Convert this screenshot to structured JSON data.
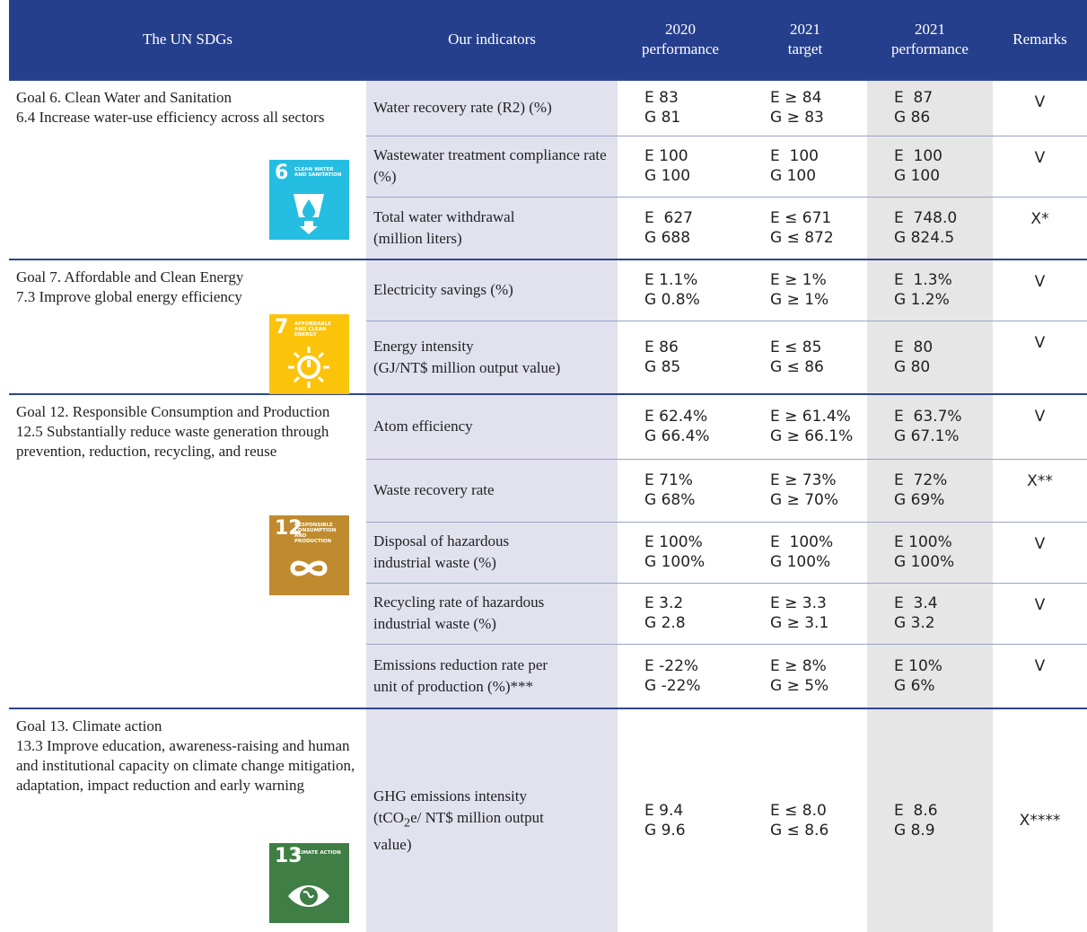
{
  "header": [
    "The UN SDGs",
    "Our indicators",
    "2020\nperformance",
    "2021\ntarget",
    "2021\nperformance",
    "Remarks"
  ],
  "goals": [
    {
      "title": "Goal 6. Clean Water and Sanitation",
      "target": "6.4 Increase water-use efficiency across all sectors",
      "icon": {
        "number": "6",
        "label": "CLEAN WATER AND SANITATION"
      },
      "rows": [
        {
          "indicator": "Water recovery rate (R2) (%)",
          "p2020": [
            "E 83",
            "G 81"
          ],
          "t2021": [
            "E ≥ 84",
            "G ≥ 83"
          ],
          "p2021": [
            "E  87",
            "G 86"
          ],
          "remark": "V"
        },
        {
          "indicator": "Wastewater treatment compliance rate (%)",
          "p2020": [
            "E 100",
            "G 100"
          ],
          "t2021": [
            "E  100",
            "G 100"
          ],
          "p2021": [
            "E  100",
            "G 100"
          ],
          "remark": "V"
        },
        {
          "indicator": "Total water withdrawal\n(million liters)",
          "p2020": [
            "E  627",
            "G 688"
          ],
          "t2021": [
            "E ≤ 671",
            "G ≤ 872"
          ],
          "p2021": [
            "E  748.0",
            "G 824.5"
          ],
          "remark": "X*"
        }
      ]
    },
    {
      "title": "Goal 7. Affordable and Clean Energy",
      "target": "7.3 Improve global energy efficiency",
      "icon": {
        "number": "7",
        "label": "AFFORDABLE AND CLEAN ENERGY"
      },
      "rows": [
        {
          "indicator": "Electricity savings (%)",
          "p2020": [
            "E 1.1%",
            "G 0.8%"
          ],
          "t2021": [
            "E ≥ 1%",
            "G ≥ 1%"
          ],
          "p2021": [
            "E  1.3%",
            "G 1.2%"
          ],
          "remark": "V"
        },
        {
          "indicator": "Energy intensity\n(GJ/NT$ million output value)",
          "p2020": [
            "E 86",
            "G 85"
          ],
          "t2021": [
            "E ≤ 85",
            "G ≤ 86"
          ],
          "p2021": [
            "E  80",
            "G 80"
          ],
          "remark": "V"
        }
      ]
    },
    {
      "title": "Goal 12. Responsible Consumption and Production",
      "target": "12.5 Substantially reduce waste generation through prevention, reduction, recycling, and reuse",
      "icon": {
        "number": "12",
        "label": "RESPONSIBLE CONSUMPTION AND PRODUCTION"
      },
      "rows": [
        {
          "indicator": "Atom efficiency",
          "p2020": [
            "E 62.4%",
            "G 66.4%"
          ],
          "t2021": [
            "E ≥ 61.4%",
            "G ≥ 66.1%"
          ],
          "p2021": [
            "E  63.7%",
            "G 67.1%"
          ],
          "remark": "V"
        },
        {
          "indicator": "Waste recovery rate",
          "p2020": [
            "E 71%",
            "G 68%"
          ],
          "t2021": [
            "E ≥ 73%",
            "G ≥ 70%"
          ],
          "p2021": [
            "E  72%",
            "G 69%"
          ],
          "remark": "X**"
        },
        {
          "indicator": "Disposal of hazardous\nindustrial waste (%)",
          "p2020": [
            "E 100%",
            "G 100%"
          ],
          "t2021": [
            "E  100%",
            "G 100%"
          ],
          "p2021": [
            "E 100%",
            "G 100%"
          ],
          "remark": "V"
        },
        {
          "indicator": "Recycling rate of hazardous\nindustrial waste (%)",
          "p2020": [
            "E 3.2",
            "G 2.8"
          ],
          "t2021": [
            "E ≥ 3.3",
            "G ≥ 3.1"
          ],
          "p2021": [
            "E  3.4",
            "G 3.2"
          ],
          "remark": "V"
        },
        {
          "indicator": "Emissions reduction rate per\nunit of production (%)***",
          "p2020": [
            "E -22%",
            "G -22%"
          ],
          "t2021": [
            "E ≥ 8%",
            "G ≥ 5%"
          ],
          "p2021": [
            "E 10%",
            "G 6%"
          ],
          "remark": "V"
        }
      ]
    },
    {
      "title": "Goal 13. Climate action",
      "target": "13.3 Improve education, awareness-raising and human and institutional capacity on climate change mitigation, adaptation, impact reduction and early warning",
      "icon": {
        "number": "13",
        "label": "CLIMATE ACTION"
      },
      "rows": [
        {
          "indicator": [
            "GHG emissions intensity\n(tCO",
            "2",
            "e/ NT$ million output\nvalue)"
          ],
          "p2020": [
            "E 9.4",
            "G 9.6"
          ],
          "t2021": [
            "E ≤ 8.0",
            "G ≤ 8.6"
          ],
          "p2021": [
            "E  8.6",
            "G 8.9"
          ],
          "remark": "X****"
        }
      ]
    }
  ]
}
